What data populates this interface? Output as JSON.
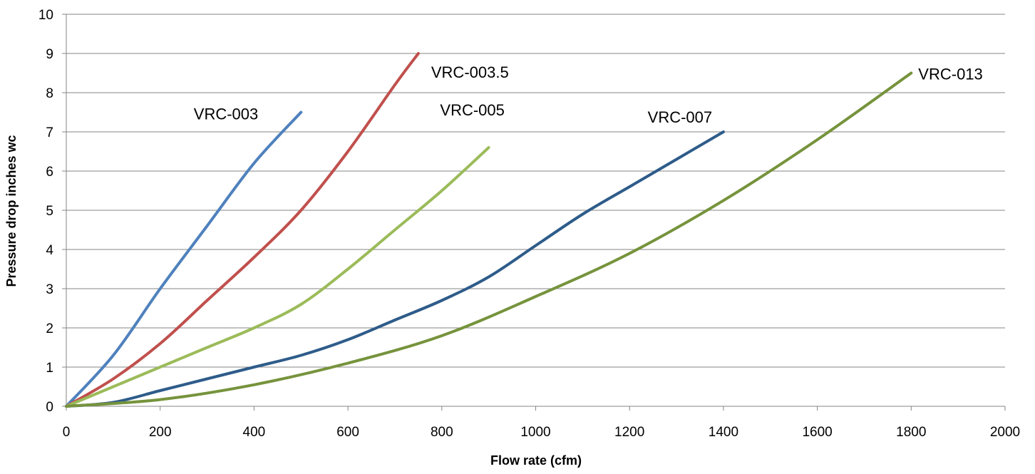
{
  "chart_data": {
    "type": "line",
    "xlabel": "Flow rate (cfm)",
    "ylabel": "Pressure drop inches wc",
    "xlim": [
      0,
      2000
    ],
    "ylim": [
      0,
      10
    ],
    "x_ticks": [
      0,
      200,
      400,
      600,
      800,
      1000,
      1200,
      1400,
      1600,
      1800,
      2000
    ],
    "y_ticks": [
      0,
      1,
      2,
      3,
      4,
      5,
      6,
      7,
      8,
      9,
      10
    ],
    "grid": "horizontal",
    "legend": "none",
    "series": [
      {
        "name": "VRC-003",
        "color": "#4F81BD",
        "x": [
          0,
          100,
          200,
          300,
          400,
          500
        ],
        "y": [
          0,
          1.3,
          3.0,
          4.6,
          6.2,
          7.5
        ]
      },
      {
        "name": "VRC-003.5",
        "color": "#C0504D",
        "x": [
          0,
          100,
          200,
          300,
          400,
          500,
          600,
          700,
          750
        ],
        "y": [
          0,
          0.7,
          1.6,
          2.7,
          3.8,
          5.0,
          6.5,
          8.2,
          9.0
        ]
      },
      {
        "name": "VRC-005",
        "color": "#9BBB59",
        "x": [
          0,
          100,
          200,
          300,
          400,
          500,
          600,
          700,
          800,
          900
        ],
        "y": [
          0,
          0.5,
          1.0,
          1.5,
          2.0,
          2.6,
          3.5,
          4.5,
          5.5,
          6.6
        ]
      },
      {
        "name": "VRC-007",
        "color": "#2E5C8A",
        "x": [
          0,
          100,
          200,
          300,
          400,
          500,
          600,
          700,
          800,
          900,
          1000,
          1100,
          1200,
          1300,
          1400
        ],
        "y": [
          0,
          0.1,
          0.4,
          0.7,
          1.0,
          1.3,
          1.7,
          2.2,
          2.7,
          3.3,
          4.1,
          4.9,
          5.6,
          6.3,
          7.0
        ]
      },
      {
        "name": "VRC-013",
        "color": "#76933C",
        "x": [
          0,
          200,
          400,
          600,
          800,
          1000,
          1200,
          1400,
          1600,
          1800
        ],
        "y": [
          0,
          0.17,
          0.55,
          1.1,
          1.8,
          2.8,
          3.9,
          5.25,
          6.8,
          8.5
        ]
      }
    ]
  }
}
